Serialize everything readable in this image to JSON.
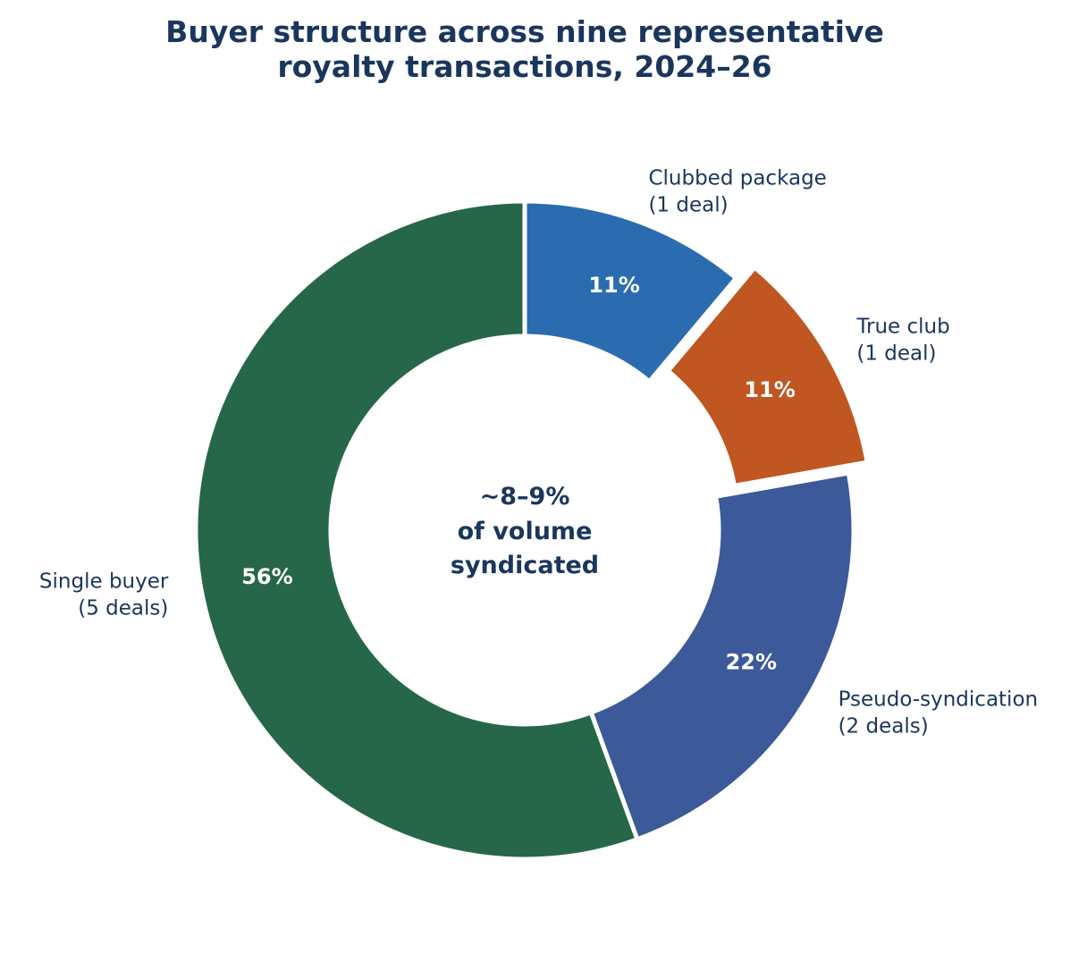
{
  "chart_data": {
    "type": "pie",
    "subtype": "donut",
    "title": "Buyer structure across nine representative royalty transactions, 2024–26",
    "title_lines": [
      "Buyer structure across nine representative",
      "royalty transactions, 2024–26"
    ],
    "center_text": [
      "~8–9%",
      "of volume",
      "syndicated"
    ],
    "slices": [
      {
        "name": "Clubbed package",
        "count_label": "(1 deal)",
        "deals": 1,
        "percent_label": "11%",
        "color": "#2b6cb0",
        "exploded": false
      },
      {
        "name": "True club",
        "count_label": "(1 deal)",
        "deals": 1,
        "percent_label": "11%",
        "color": "#c05621",
        "exploded": true
      },
      {
        "name": "Pseudo-syndication",
        "count_label": "(2 deals)",
        "deals": 2,
        "percent_label": "22%",
        "color": "#3c5a99",
        "exploded": false
      },
      {
        "name": "Single buyer",
        "count_label": "(5 deals)",
        "deals": 5,
        "percent_label": "56%",
        "color": "#276749",
        "exploded": false
      }
    ],
    "start_angle": "top, clockwise"
  }
}
